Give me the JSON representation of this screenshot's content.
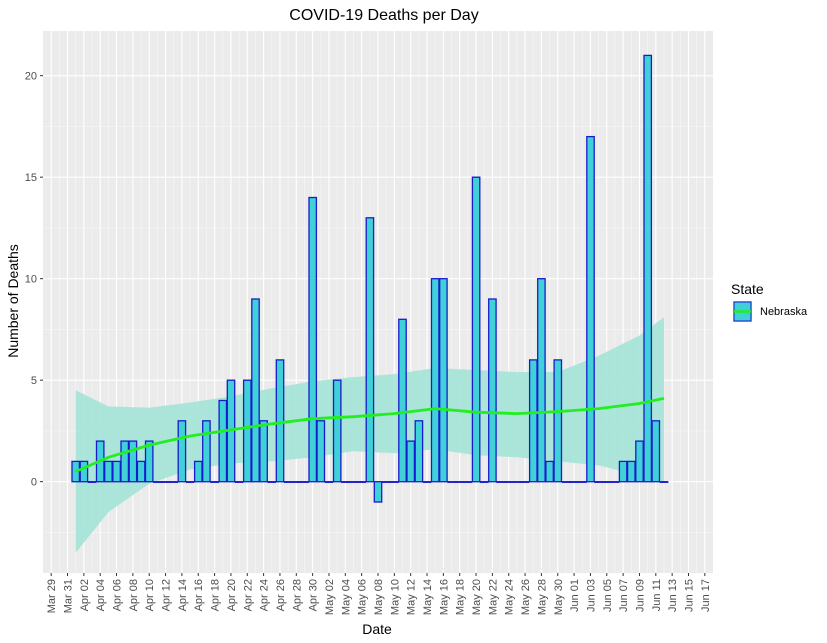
{
  "chart_data": {
    "type": "bar",
    "title": "COVID-19 Deaths per Day",
    "xlabel": "Date",
    "ylabel": "Number of Deaths",
    "x_range": [
      "2020-03-28",
      "2020-06-18"
    ],
    "ylim": [
      -4.5,
      22.2
    ],
    "y_ticks": [
      0,
      5,
      10,
      15,
      20
    ],
    "x_ticks": [
      "Mar 29",
      "Mar 31",
      "Apr 02",
      "Apr 04",
      "Apr 06",
      "Apr 08",
      "Apr 10",
      "Apr 12",
      "Apr 14",
      "Apr 16",
      "Apr 18",
      "Apr 20",
      "Apr 22",
      "Apr 24",
      "Apr 26",
      "Apr 28",
      "Apr 30",
      "May 02",
      "May 04",
      "May 06",
      "May 08",
      "May 10",
      "May 12",
      "May 14",
      "May 16",
      "May 18",
      "May 20",
      "May 22",
      "May 24",
      "May 26",
      "May 28",
      "May 30",
      "Jun 01",
      "Jun 03",
      "Jun 05",
      "Jun 07",
      "Jun 09",
      "Jun 11",
      "Jun 13",
      "Jun 15",
      "Jun 17"
    ],
    "x_tick_dates": [
      "2020-03-29",
      "2020-03-31",
      "2020-04-02",
      "2020-04-04",
      "2020-04-06",
      "2020-04-08",
      "2020-04-10",
      "2020-04-12",
      "2020-04-14",
      "2020-04-16",
      "2020-04-18",
      "2020-04-20",
      "2020-04-22",
      "2020-04-24",
      "2020-04-26",
      "2020-04-28",
      "2020-04-30",
      "2020-05-02",
      "2020-05-04",
      "2020-05-06",
      "2020-05-08",
      "2020-05-10",
      "2020-05-12",
      "2020-05-14",
      "2020-05-16",
      "2020-05-18",
      "2020-05-20",
      "2020-05-22",
      "2020-05-24",
      "2020-05-26",
      "2020-05-28",
      "2020-05-30",
      "2020-06-01",
      "2020-06-03",
      "2020-06-05",
      "2020-06-07",
      "2020-06-09",
      "2020-06-11",
      "2020-06-13",
      "2020-06-15",
      "2020-06-17"
    ],
    "grid": true,
    "legend": {
      "title": "State",
      "position": "right",
      "entries": [
        "Nebraska"
      ]
    },
    "series": [
      {
        "name": "Nebraska",
        "type": "bar",
        "fill": "#40d0d8",
        "stroke": "#1a1acc",
        "x": [
          "2020-04-01",
          "2020-04-02",
          "2020-04-03",
          "2020-04-04",
          "2020-04-05",
          "2020-04-06",
          "2020-04-07",
          "2020-04-08",
          "2020-04-09",
          "2020-04-10",
          "2020-04-11",
          "2020-04-12",
          "2020-04-13",
          "2020-04-14",
          "2020-04-15",
          "2020-04-16",
          "2020-04-17",
          "2020-04-18",
          "2020-04-19",
          "2020-04-20",
          "2020-04-21",
          "2020-04-22",
          "2020-04-23",
          "2020-04-24",
          "2020-04-25",
          "2020-04-26",
          "2020-04-27",
          "2020-04-28",
          "2020-04-29",
          "2020-04-30",
          "2020-05-01",
          "2020-05-02",
          "2020-05-03",
          "2020-05-04",
          "2020-05-05",
          "2020-05-06",
          "2020-05-07",
          "2020-05-08",
          "2020-05-09",
          "2020-05-10",
          "2020-05-11",
          "2020-05-12",
          "2020-05-13",
          "2020-05-14",
          "2020-05-15",
          "2020-05-16",
          "2020-05-17",
          "2020-05-18",
          "2020-05-19",
          "2020-05-20",
          "2020-05-21",
          "2020-05-22",
          "2020-05-23",
          "2020-05-24",
          "2020-05-25",
          "2020-05-26",
          "2020-05-27",
          "2020-05-28",
          "2020-05-29",
          "2020-05-30",
          "2020-05-31",
          "2020-06-01",
          "2020-06-02",
          "2020-06-03",
          "2020-06-04",
          "2020-06-05",
          "2020-06-06",
          "2020-06-07",
          "2020-06-08",
          "2020-06-09",
          "2020-06-10",
          "2020-06-11",
          "2020-06-12"
        ],
        "values": [
          1,
          1,
          0,
          2,
          1,
          1,
          2,
          2,
          1,
          2,
          0,
          0,
          0,
          3,
          0,
          1,
          3,
          0,
          4,
          5,
          0,
          5,
          9,
          3,
          0,
          6,
          0,
          0,
          0,
          14,
          3,
          0,
          5,
          0,
          0,
          0,
          13,
          -1,
          0,
          0,
          8,
          2,
          3,
          0,
          10,
          10,
          0,
          0,
          0,
          15,
          0,
          9,
          0,
          0,
          0,
          0,
          6,
          10,
          1,
          6,
          0,
          0,
          0,
          17,
          0,
          0,
          0,
          1,
          1,
          2,
          21,
          3,
          0
        ]
      },
      {
        "name": "",
        "type": "smooth",
        "color": "#22ee22",
        "band_color": "#a8e5d8",
        "x": [
          "2020-04-01",
          "2020-04-05",
          "2020-04-10",
          "2020-04-15",
          "2020-04-20",
          "2020-04-25",
          "2020-04-30",
          "2020-05-05",
          "2020-05-10",
          "2020-05-15",
          "2020-05-20",
          "2020-05-25",
          "2020-05-30",
          "2020-06-04",
          "2020-06-09",
          "2020-06-12"
        ],
        "values": [
          0.5,
          1.2,
          1.8,
          2.25,
          2.55,
          2.85,
          3.1,
          3.2,
          3.35,
          3.6,
          3.42,
          3.35,
          3.45,
          3.6,
          3.85,
          4.1
        ],
        "lower": [
          -3.5,
          -1.5,
          -0.1,
          0.6,
          0.9,
          1.0,
          1.2,
          1.5,
          1.4,
          1.6,
          1.3,
          1.2,
          1.0,
          0.8,
          0.3,
          0.0
        ],
        "upper": [
          4.5,
          3.7,
          3.65,
          3.9,
          4.2,
          4.6,
          4.95,
          5.15,
          5.3,
          5.6,
          5.5,
          5.4,
          5.4,
          6.2,
          7.2,
          8.1
        ]
      }
    ]
  }
}
